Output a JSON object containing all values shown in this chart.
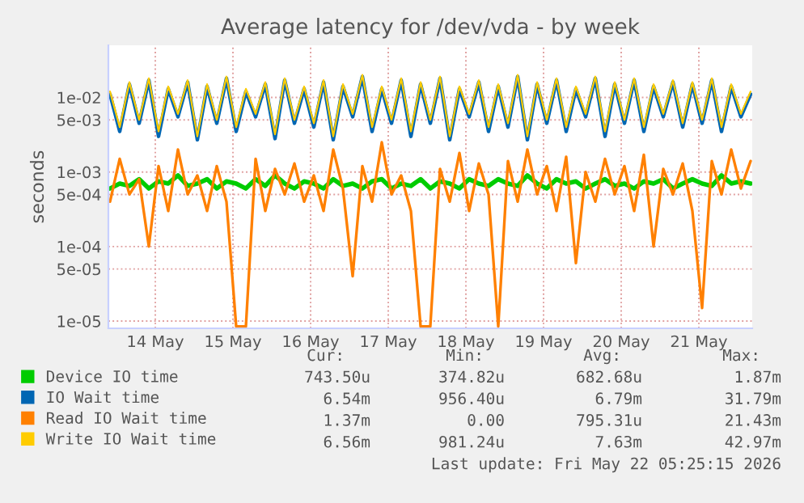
{
  "chart_data": {
    "type": "line",
    "title": "Average latency for /dev/vda - by week",
    "ylabel": "seconds",
    "log": "y",
    "x": [
      "2026-05-13T22:00",
      "2026-05-14T01:00",
      "2026-05-14T04:00",
      "2026-05-14T07:00",
      "2026-05-14T10:00",
      "2026-05-14T13:00",
      "2026-05-14T16:00",
      "2026-05-14T19:00",
      "2026-05-14T22:00",
      "2026-05-15T01:00",
      "2026-05-15T04:00",
      "2026-05-15T07:00",
      "2026-05-15T10:00",
      "2026-05-15T13:00",
      "2026-05-15T16:00",
      "2026-05-15T19:00",
      "2026-05-15T22:00",
      "2026-05-16T01:00",
      "2026-05-16T04:00",
      "2026-05-16T07:00",
      "2026-05-16T10:00",
      "2026-05-16T13:00",
      "2026-05-16T16:00",
      "2026-05-16T19:00",
      "2026-05-16T22:00",
      "2026-05-17T01:00",
      "2026-05-17T04:00",
      "2026-05-17T07:00",
      "2026-05-17T10:00",
      "2026-05-17T13:00",
      "2026-05-17T16:00",
      "2026-05-17T19:00",
      "2026-05-17T22:00",
      "2026-05-18T01:00",
      "2026-05-18T04:00",
      "2026-05-18T07:00",
      "2026-05-18T10:00",
      "2026-05-18T13:00",
      "2026-05-18T16:00",
      "2026-05-18T19:00",
      "2026-05-18T22:00",
      "2026-05-19T01:00",
      "2026-05-19T04:00",
      "2026-05-19T07:00",
      "2026-05-19T10:00",
      "2026-05-19T13:00",
      "2026-05-19T16:00",
      "2026-05-19T19:00",
      "2026-05-19T22:00",
      "2026-05-20T01:00",
      "2026-05-20T04:00",
      "2026-05-20T07:00",
      "2026-05-20T10:00",
      "2026-05-20T13:00",
      "2026-05-20T16:00",
      "2026-05-20T19:00",
      "2026-05-20T22:00",
      "2026-05-21T01:00",
      "2026-05-21T04:00",
      "2026-05-21T07:00",
      "2026-05-21T10:00",
      "2026-05-21T13:00",
      "2026-05-21T16:00",
      "2026-05-21T19:00",
      "2026-05-21T22:00",
      "2026-05-22T01:00",
      "2026-05-22T04:00"
    ],
    "xlim": [
      "2026-05-13T21:30",
      "2026-05-22T04:30"
    ],
    "xticks": [
      {
        "value": "2026-05-14T12:00",
        "label": "14 May"
      },
      {
        "value": "2026-05-15T12:00",
        "label": "15 May"
      },
      {
        "value": "2026-05-16T12:00",
        "label": "16 May"
      },
      {
        "value": "2026-05-17T12:00",
        "label": "17 May"
      },
      {
        "value": "2026-05-18T12:00",
        "label": "18 May"
      },
      {
        "value": "2026-05-19T12:00",
        "label": "19 May"
      },
      {
        "value": "2026-05-20T12:00",
        "label": "20 May"
      },
      {
        "value": "2026-05-21T12:00",
        "label": "21 May"
      }
    ],
    "ylim": [
      8e-06,
      0.05
    ],
    "yticks": [
      {
        "value": 1e-05,
        "label": "1e-05"
      },
      {
        "value": 5e-05,
        "label": "5e-05"
      },
      {
        "value": 0.0001,
        "label": "1e-04"
      },
      {
        "value": 0.0005,
        "label": "5e-04"
      },
      {
        "value": 0.001,
        "label": "1e-03"
      },
      {
        "value": 0.005,
        "label": "5e-03"
      },
      {
        "value": 0.01,
        "label": "1e-02"
      }
    ],
    "grid": true,
    "legend": "bottom",
    "line_style": "solid",
    "marker": "none",
    "series": [
      {
        "name": "Device IO time",
        "color": "#00cc00",
        "values": [
          0.0006,
          0.0007,
          0.00065,
          0.0008,
          0.0006,
          0.00075,
          0.0007,
          0.0009,
          0.00065,
          0.0007,
          0.0008,
          0.0006,
          0.00075,
          0.0007,
          0.0006,
          0.0008,
          0.00065,
          0.0009,
          0.0007,
          0.0006,
          0.00075,
          0.0007,
          0.0006,
          0.0008,
          0.00065,
          0.0007,
          0.0006,
          0.00075,
          0.0008,
          0.0006,
          0.0007,
          0.00065,
          0.0008,
          0.0006,
          0.00075,
          0.0007,
          0.0006,
          0.0008,
          0.0007,
          0.00065,
          0.0008,
          0.0007,
          0.00065,
          0.0009,
          0.0007,
          0.0006,
          0.0008,
          0.0007,
          0.00075,
          0.0006,
          0.0007,
          0.0008,
          0.00065,
          0.0007,
          0.0006,
          0.00075,
          0.0007,
          0.0008,
          0.0006,
          0.0007,
          0.0008,
          0.0007,
          0.00065,
          0.0009,
          0.0007,
          0.00075,
          0.0007
        ]
      },
      {
        "name": "IO Wait time",
        "color": "#0066b3",
        "values": [
          0.011,
          0.0035,
          0.015,
          0.0045,
          0.017,
          0.003,
          0.013,
          0.0055,
          0.016,
          0.0027,
          0.014,
          0.0045,
          0.018,
          0.0035,
          0.012,
          0.0055,
          0.015,
          0.0028,
          0.017,
          0.0045,
          0.013,
          0.004,
          0.016,
          0.0027,
          0.014,
          0.0055,
          0.019,
          0.0035,
          0.013,
          0.0045,
          0.017,
          0.003,
          0.015,
          0.0045,
          0.018,
          0.0027,
          0.013,
          0.0055,
          0.016,
          0.0035,
          0.014,
          0.004,
          0.019,
          0.0027,
          0.015,
          0.0045,
          0.017,
          0.0035,
          0.013,
          0.0055,
          0.018,
          0.003,
          0.015,
          0.0045,
          0.017,
          0.0035,
          0.014,
          0.0055,
          0.016,
          0.004,
          0.015,
          0.0045,
          0.017,
          0.0035,
          0.014,
          0.0055,
          0.011
        ]
      },
      {
        "name": "Read IO Wait time",
        "color": "#ff8000",
        "values": [
          0.0004,
          0.0015,
          0.0005,
          0.0008,
          0.0001,
          0.0012,
          0.0003,
          0.002,
          0.0005,
          0.0009,
          0.0003,
          0.0012,
          0.0004,
          8.5e-06,
          8.5e-06,
          0.0015,
          0.0003,
          0.0011,
          0.0005,
          0.0013,
          0.0004,
          0.0009,
          0.0003,
          0.002,
          0.0006,
          4e-05,
          0.0012,
          0.0004,
          0.0025,
          0.0005,
          0.0009,
          0.0003,
          8.5e-06,
          8.5e-06,
          0.0011,
          0.0004,
          0.0018,
          0.0003,
          0.0013,
          0.0005,
          8.5e-06,
          0.0014,
          0.0004,
          0.002,
          0.0005,
          0.0012,
          0.0003,
          0.0016,
          6e-05,
          0.001,
          0.0004,
          0.0015,
          0.0005,
          0.0012,
          0.0003,
          0.0017,
          0.0001,
          0.0011,
          0.0005,
          0.0013,
          0.0003,
          1.5e-05,
          0.0014,
          0.0005,
          0.002,
          0.0006,
          0.0014
        ]
      },
      {
        "name": "Write IO Wait time",
        "color": "#ffcc00",
        "values": [
          0.012,
          0.004,
          0.016,
          0.005,
          0.018,
          0.0035,
          0.014,
          0.006,
          0.017,
          0.003,
          0.015,
          0.005,
          0.019,
          0.004,
          0.013,
          0.006,
          0.016,
          0.0032,
          0.018,
          0.005,
          0.014,
          0.0045,
          0.017,
          0.003,
          0.015,
          0.006,
          0.02,
          0.004,
          0.014,
          0.005,
          0.018,
          0.0035,
          0.016,
          0.005,
          0.019,
          0.003,
          0.014,
          0.006,
          0.017,
          0.004,
          0.015,
          0.0045,
          0.02,
          0.003,
          0.016,
          0.005,
          0.018,
          0.004,
          0.014,
          0.006,
          0.019,
          0.0035,
          0.016,
          0.005,
          0.018,
          0.004,
          0.015,
          0.006,
          0.017,
          0.0045,
          0.016,
          0.005,
          0.018,
          0.004,
          0.015,
          0.006,
          0.012
        ]
      }
    ],
    "annotations": [
      "Cur:",
      "Min:",
      "Avg:",
      "Max:",
      "743.50u",
      "374.82u",
      "682.68u",
      "1.87m",
      "6.54m",
      "956.40u",
      "6.79m",
      "31.79m",
      "1.37m",
      "0.00",
      "795.31u",
      "21.43m",
      "6.56m",
      "981.24u",
      "7.63m",
      "42.97m",
      "Last update: Fri May 22 05:25:15 2026"
    ]
  }
}
